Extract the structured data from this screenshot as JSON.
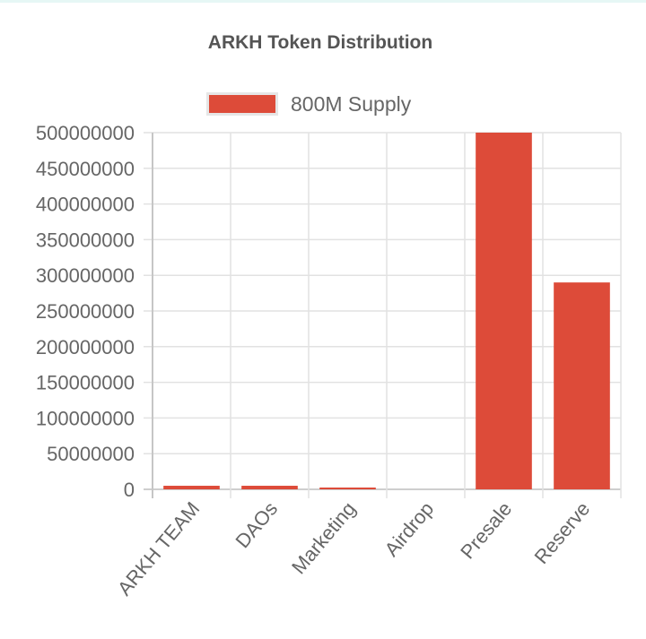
{
  "chart_data": {
    "type": "bar",
    "title": "ARKH Token Distribution",
    "categories": [
      "ARKH TEAM",
      "DAOs",
      "Marketing",
      "Airdrop",
      "Presale",
      "Reserve"
    ],
    "series": [
      {
        "name": "800M Supply",
        "values": [
          5000000,
          5000000,
          1000000,
          0,
          500000000,
          290000000
        ],
        "color": "#dd4b39"
      }
    ],
    "ylim": [
      0,
      500000000
    ],
    "yticks": [
      0,
      50000000,
      100000000,
      150000000,
      200000000,
      250000000,
      300000000,
      350000000,
      400000000,
      450000000,
      500000000
    ],
    "grid": true,
    "legend_position": "top"
  }
}
